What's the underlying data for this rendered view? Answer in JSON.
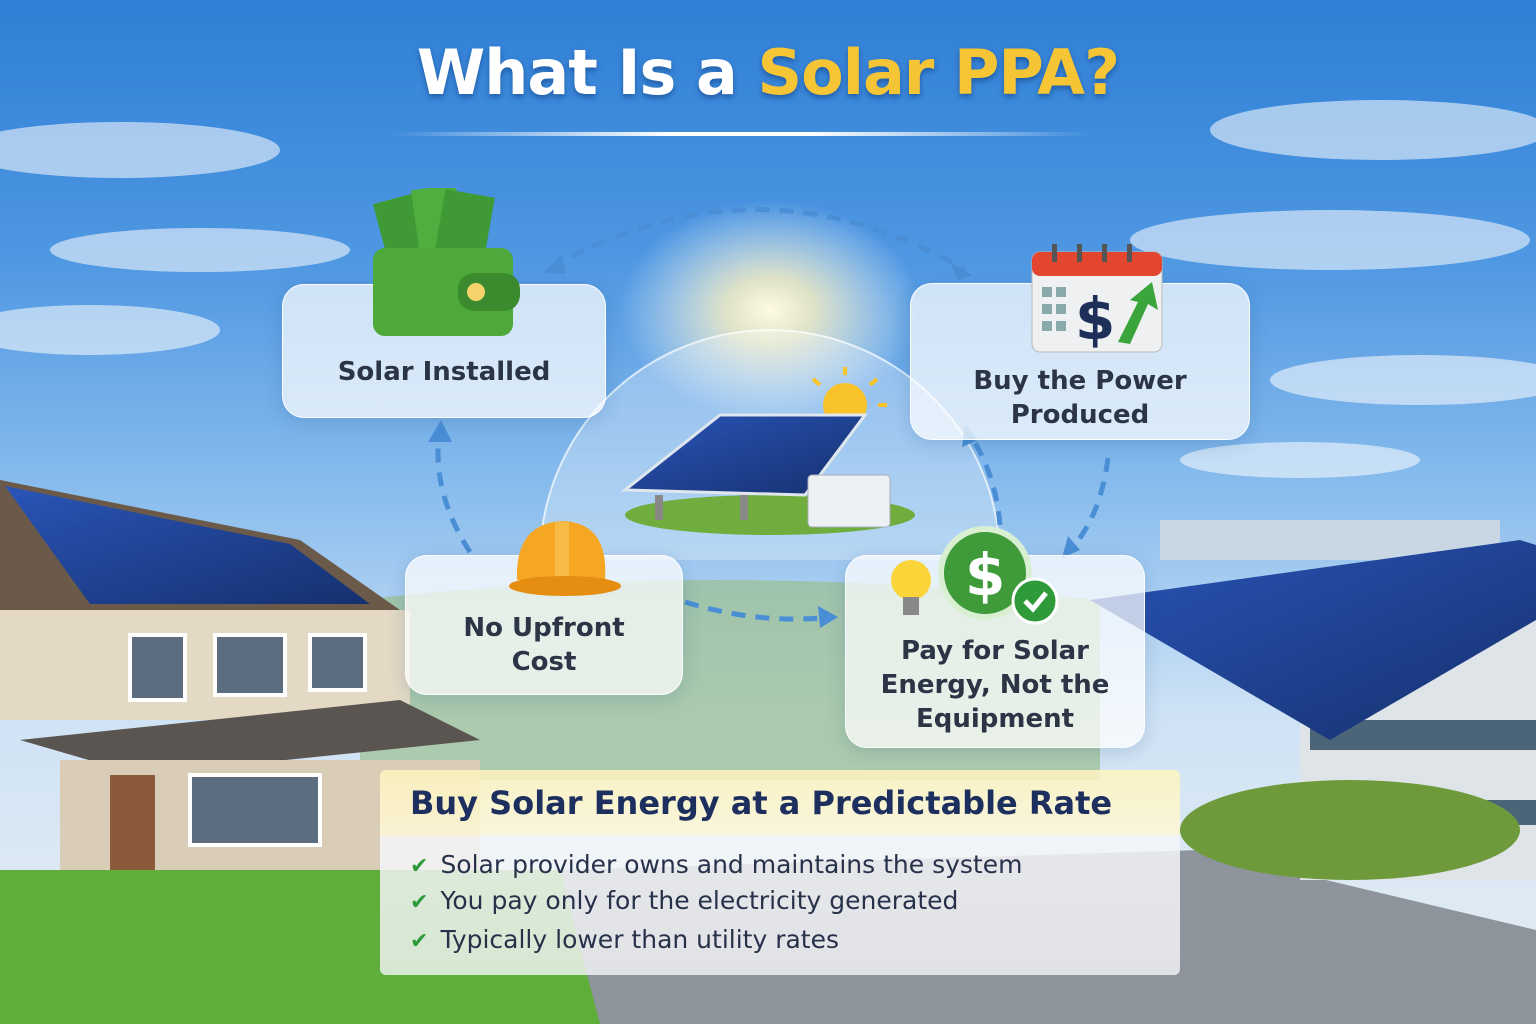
{
  "title": {
    "prefix": "What Is a ",
    "highlight": "Solar PPA?"
  },
  "steps": [
    {
      "label": "Solar Installed",
      "icon": "wallet-with-cash-icon"
    },
    {
      "label_line1": "Buy the Power",
      "label_line2": "Produced",
      "icon": "calendar-dollar-arrow-icon"
    },
    {
      "label_line1": "Pay for Solar",
      "label_line2": "Energy, Not the",
      "label_line3": "Equipment",
      "icon": "lightbulb-dollar-check-icon"
    },
    {
      "label_line1": "No Upfront",
      "label_line2": "Cost",
      "icon": "hard-hat-icon"
    }
  ],
  "center": {
    "icon": "solar-panel-with-sun-icon"
  },
  "summary": {
    "heading": "Buy Solar Energy at a Predictable Rate",
    "bullets": [
      "Solar provider owns and maintains the system",
      "You pay only for the electricity generated",
      "Typically lower than utility rates"
    ]
  },
  "colors": {
    "title_highlight": "#f5c535",
    "heading": "#1c2f5e",
    "check": "#2e9a3a",
    "arrow": "#4a8fd6"
  }
}
